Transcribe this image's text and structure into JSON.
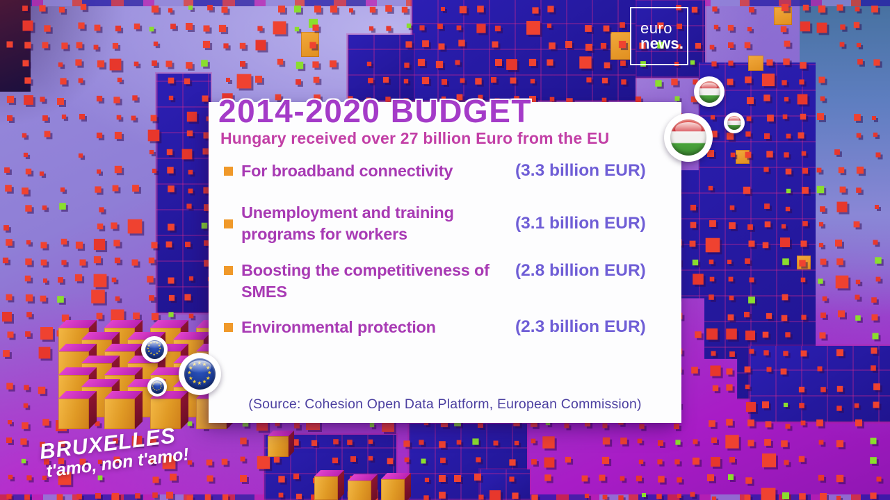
{
  "channel": {
    "logo_line1": "euro",
    "logo_line2": "news."
  },
  "card": {
    "title": "2014-2020 BUDGET",
    "subtitle": "Hungary received over 27 billion Euro from the EU",
    "items": [
      {
        "label": "For broadband connectivity",
        "amount": "(3.3 billion EUR)"
      },
      {
        "label": "Unemployment and training programs for workers",
        "amount": "(3.1 billion EUR)"
      },
      {
        "label": "Boosting the competitiveness of SMES",
        "amount": "(2.8 billion EUR)"
      },
      {
        "label": "Environmental protection",
        "amount": "(2.3 billion EUR)"
      }
    ],
    "source": "(Source: Cohesion Open Data Platform, European Commission)"
  },
  "watermark": {
    "line1": "BRUXELLES",
    "line2": "t'amo, non t'amo!"
  },
  "icons": {
    "bullet": "bullet-square-icon",
    "hungary_flag": "hungary-flag-icon",
    "eu_flag": "eu-flag-icon"
  },
  "colors": {
    "title": "#a43bc8",
    "subtitle": "#c23fa6",
    "item_label": "#a83ab4",
    "amount": "#6f5ed6",
    "source": "#4b3fa0",
    "bullet": "#f0992a",
    "card_bg": "#fdfdfe"
  },
  "chart_data": {
    "type": "table",
    "title": "2014-2020 BUDGET",
    "subtitle": "Hungary received over 27 billion Euro from the EU",
    "categories": [
      "For broadband connectivity",
      "Unemployment and training programs for workers",
      "Boosting the competitiveness of SMES",
      "Environmental protection"
    ],
    "values": [
      3.3,
      3.1,
      2.8,
      2.3
    ],
    "unit": "billion EUR",
    "total_note": "over 27 billion Euro",
    "source": "(Source: Cohesion Open Data Platform, European Commission)"
  }
}
